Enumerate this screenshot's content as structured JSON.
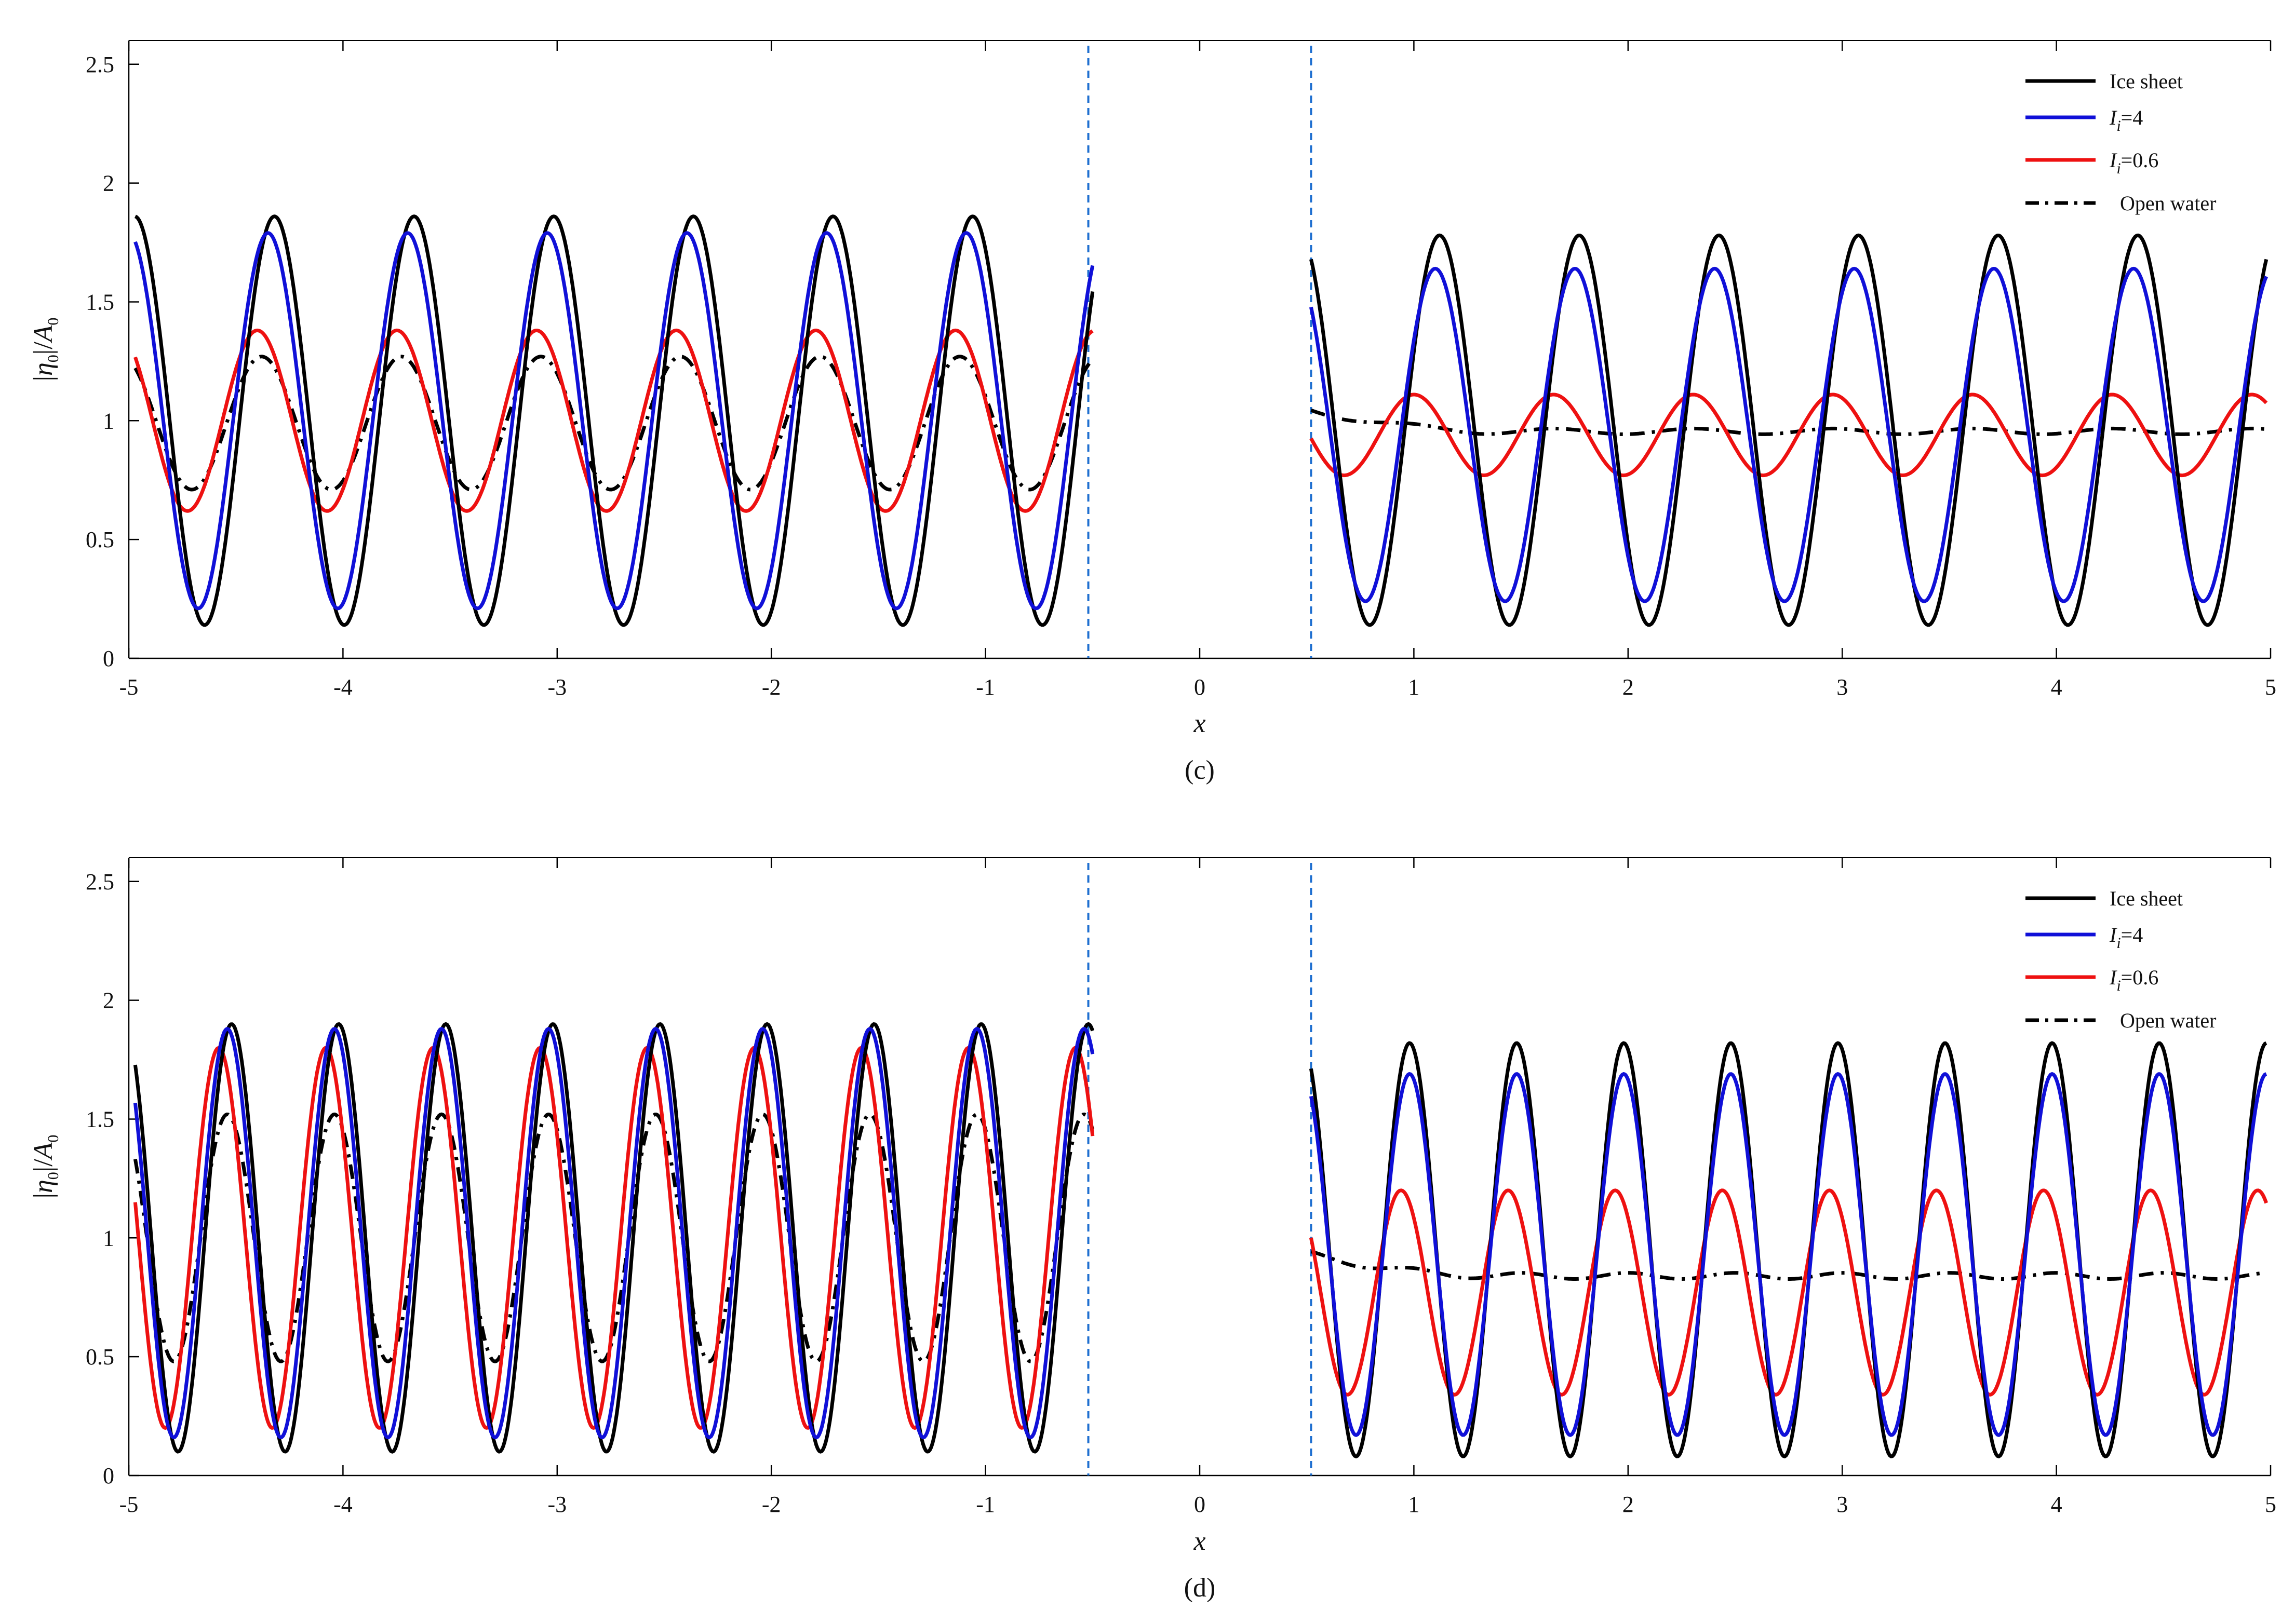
{
  "chart_data": [
    {
      "type": "line",
      "panel_label": "(c)",
      "xlabel": "x",
      "ylabel": "|η0|/A0",
      "xlim": [
        -5,
        5
      ],
      "ylim": [
        0,
        2.6
      ],
      "x_ticks": [
        "-5",
        "-4",
        "-3",
        "-2",
        "-1",
        "0",
        "1",
        "2",
        "3",
        "4",
        "5"
      ],
      "y_ticks": [
        "0",
        "0.5",
        "1",
        "1.5",
        "2",
        "2.5"
      ],
      "grid": false,
      "legend_position": "top-right",
      "vertical_dashed_lines_x": [
        -0.52,
        0.52
      ],
      "series": [
        {
          "name": "Ice sheet",
          "color": "#000000",
          "dash": "solid",
          "left": {
            "x_start": -4.97,
            "x_end": -0.5,
            "mean": 1.0,
            "amp": 0.86,
            "period": 0.652,
            "crest_x": -4.32
          },
          "right": {
            "x_start": 0.52,
            "x_end": 4.98,
            "mean": 0.96,
            "amp": 0.82,
            "period": 0.652,
            "crest_x": 1.12
          }
        },
        {
          "name": "Ii=4",
          "color": "#1010d8",
          "dash": "solid",
          "left": {
            "x_start": -4.97,
            "x_end": -0.5,
            "mean": 1.0,
            "amp": 0.79,
            "period": 0.652,
            "crest_x": -4.35
          },
          "right": {
            "x_start": 0.52,
            "x_end": 4.98,
            "mean": 0.94,
            "amp": 0.7,
            "period": 0.652,
            "crest_x": 1.1
          }
        },
        {
          "name": "Ii=0.6",
          "color": "#ee1111",
          "dash": "solid",
          "left": {
            "x_start": -4.97,
            "x_end": -0.5,
            "mean": 1.0,
            "amp": 0.38,
            "period": 0.652,
            "crest_x": -4.4
          },
          "right": {
            "x_start": 0.52,
            "x_end": 4.98,
            "mean": 0.94,
            "amp": 0.17,
            "period": 0.652,
            "crest_x": 1.0
          }
        },
        {
          "name": "Open water",
          "color": "#000000",
          "dash": "dashdot",
          "left": {
            "x_start": -4.97,
            "x_end": -0.5,
            "mean": 0.99,
            "amp": 0.28,
            "period": 0.652,
            "crest_x": -4.38
          },
          "right": {
            "x_start": 0.52,
            "x_end": 4.98,
            "mean": 0.955,
            "amp": 0.012,
            "period": 0.652,
            "crest_x": 1.0
          }
        }
      ]
    },
    {
      "type": "line",
      "panel_label": "(d)",
      "xlabel": "x",
      "ylabel": "|η0|/A0",
      "xlim": [
        -5,
        5
      ],
      "ylim": [
        0,
        2.6
      ],
      "x_ticks": [
        "-5",
        "-4",
        "-3",
        "-2",
        "-1",
        "0",
        "1",
        "2",
        "3",
        "4",
        "5"
      ],
      "y_ticks": [
        "0",
        "0.5",
        "1",
        "1.5",
        "2",
        "2.5"
      ],
      "grid": false,
      "legend_position": "top-right",
      "vertical_dashed_lines_x": [
        -0.52,
        0.52
      ],
      "series": [
        {
          "name": "Ice sheet",
          "color": "#000000",
          "dash": "solid",
          "left": {
            "x_start": -4.97,
            "x_end": -0.5,
            "mean": 1.0,
            "amp": 0.9,
            "period": 0.5,
            "crest_x": -4.52
          },
          "right": {
            "x_start": 0.52,
            "x_end": 4.98,
            "mean": 0.95,
            "amp": 0.87,
            "period": 0.5,
            "crest_x": 0.98
          }
        },
        {
          "name": "Ii=4",
          "color": "#1010d8",
          "dash": "solid",
          "left": {
            "x_start": -4.97,
            "x_end": -0.5,
            "mean": 1.02,
            "amp": 0.86,
            "period": 0.5,
            "crest_x": -4.54
          },
          "right": {
            "x_start": 0.52,
            "x_end": 4.98,
            "mean": 0.93,
            "amp": 0.76,
            "period": 0.5,
            "crest_x": 0.98
          }
        },
        {
          "name": "Ii=0.6",
          "color": "#ee1111",
          "dash": "solid",
          "left": {
            "x_start": -4.97,
            "x_end": -0.5,
            "mean": 1.0,
            "amp": 0.8,
            "period": 0.5,
            "crest_x": -4.58
          },
          "right": {
            "x_start": 0.52,
            "x_end": 4.98,
            "mean": 0.77,
            "amp": 0.43,
            "period": 0.5,
            "crest_x": 0.94
          }
        },
        {
          "name": "Open water",
          "color": "#000000",
          "dash": "dashdot",
          "left": {
            "x_start": -4.97,
            "x_end": -0.5,
            "mean": 1.0,
            "amp": 0.52,
            "period": 0.5,
            "crest_x": -4.54
          },
          "right": {
            "x_start": 0.52,
            "x_end": 4.98,
            "mean": 0.84,
            "amp": 0.013,
            "period": 0.5,
            "crest_x": 1.0
          }
        }
      ]
    }
  ],
  "legend": {
    "ice_sheet": "Ice sheet",
    "ii4_main": "I",
    "ii4_sub": "i",
    "ii4_rest": "=4",
    "ii06_main": "I",
    "ii06_sub": "i",
    "ii06_rest": "=0.6",
    "open_water": "Open water"
  },
  "ylabel_parts": {
    "bar_left": "|",
    "eta": "η",
    "eta_sub": "0",
    "bar_right": "|/",
    "a": "A",
    "a_sub": "0"
  },
  "colors": {
    "black": "#000000",
    "blue": "#1010d8",
    "red": "#ee1111",
    "dashed_vline": "#1e6fd0"
  }
}
